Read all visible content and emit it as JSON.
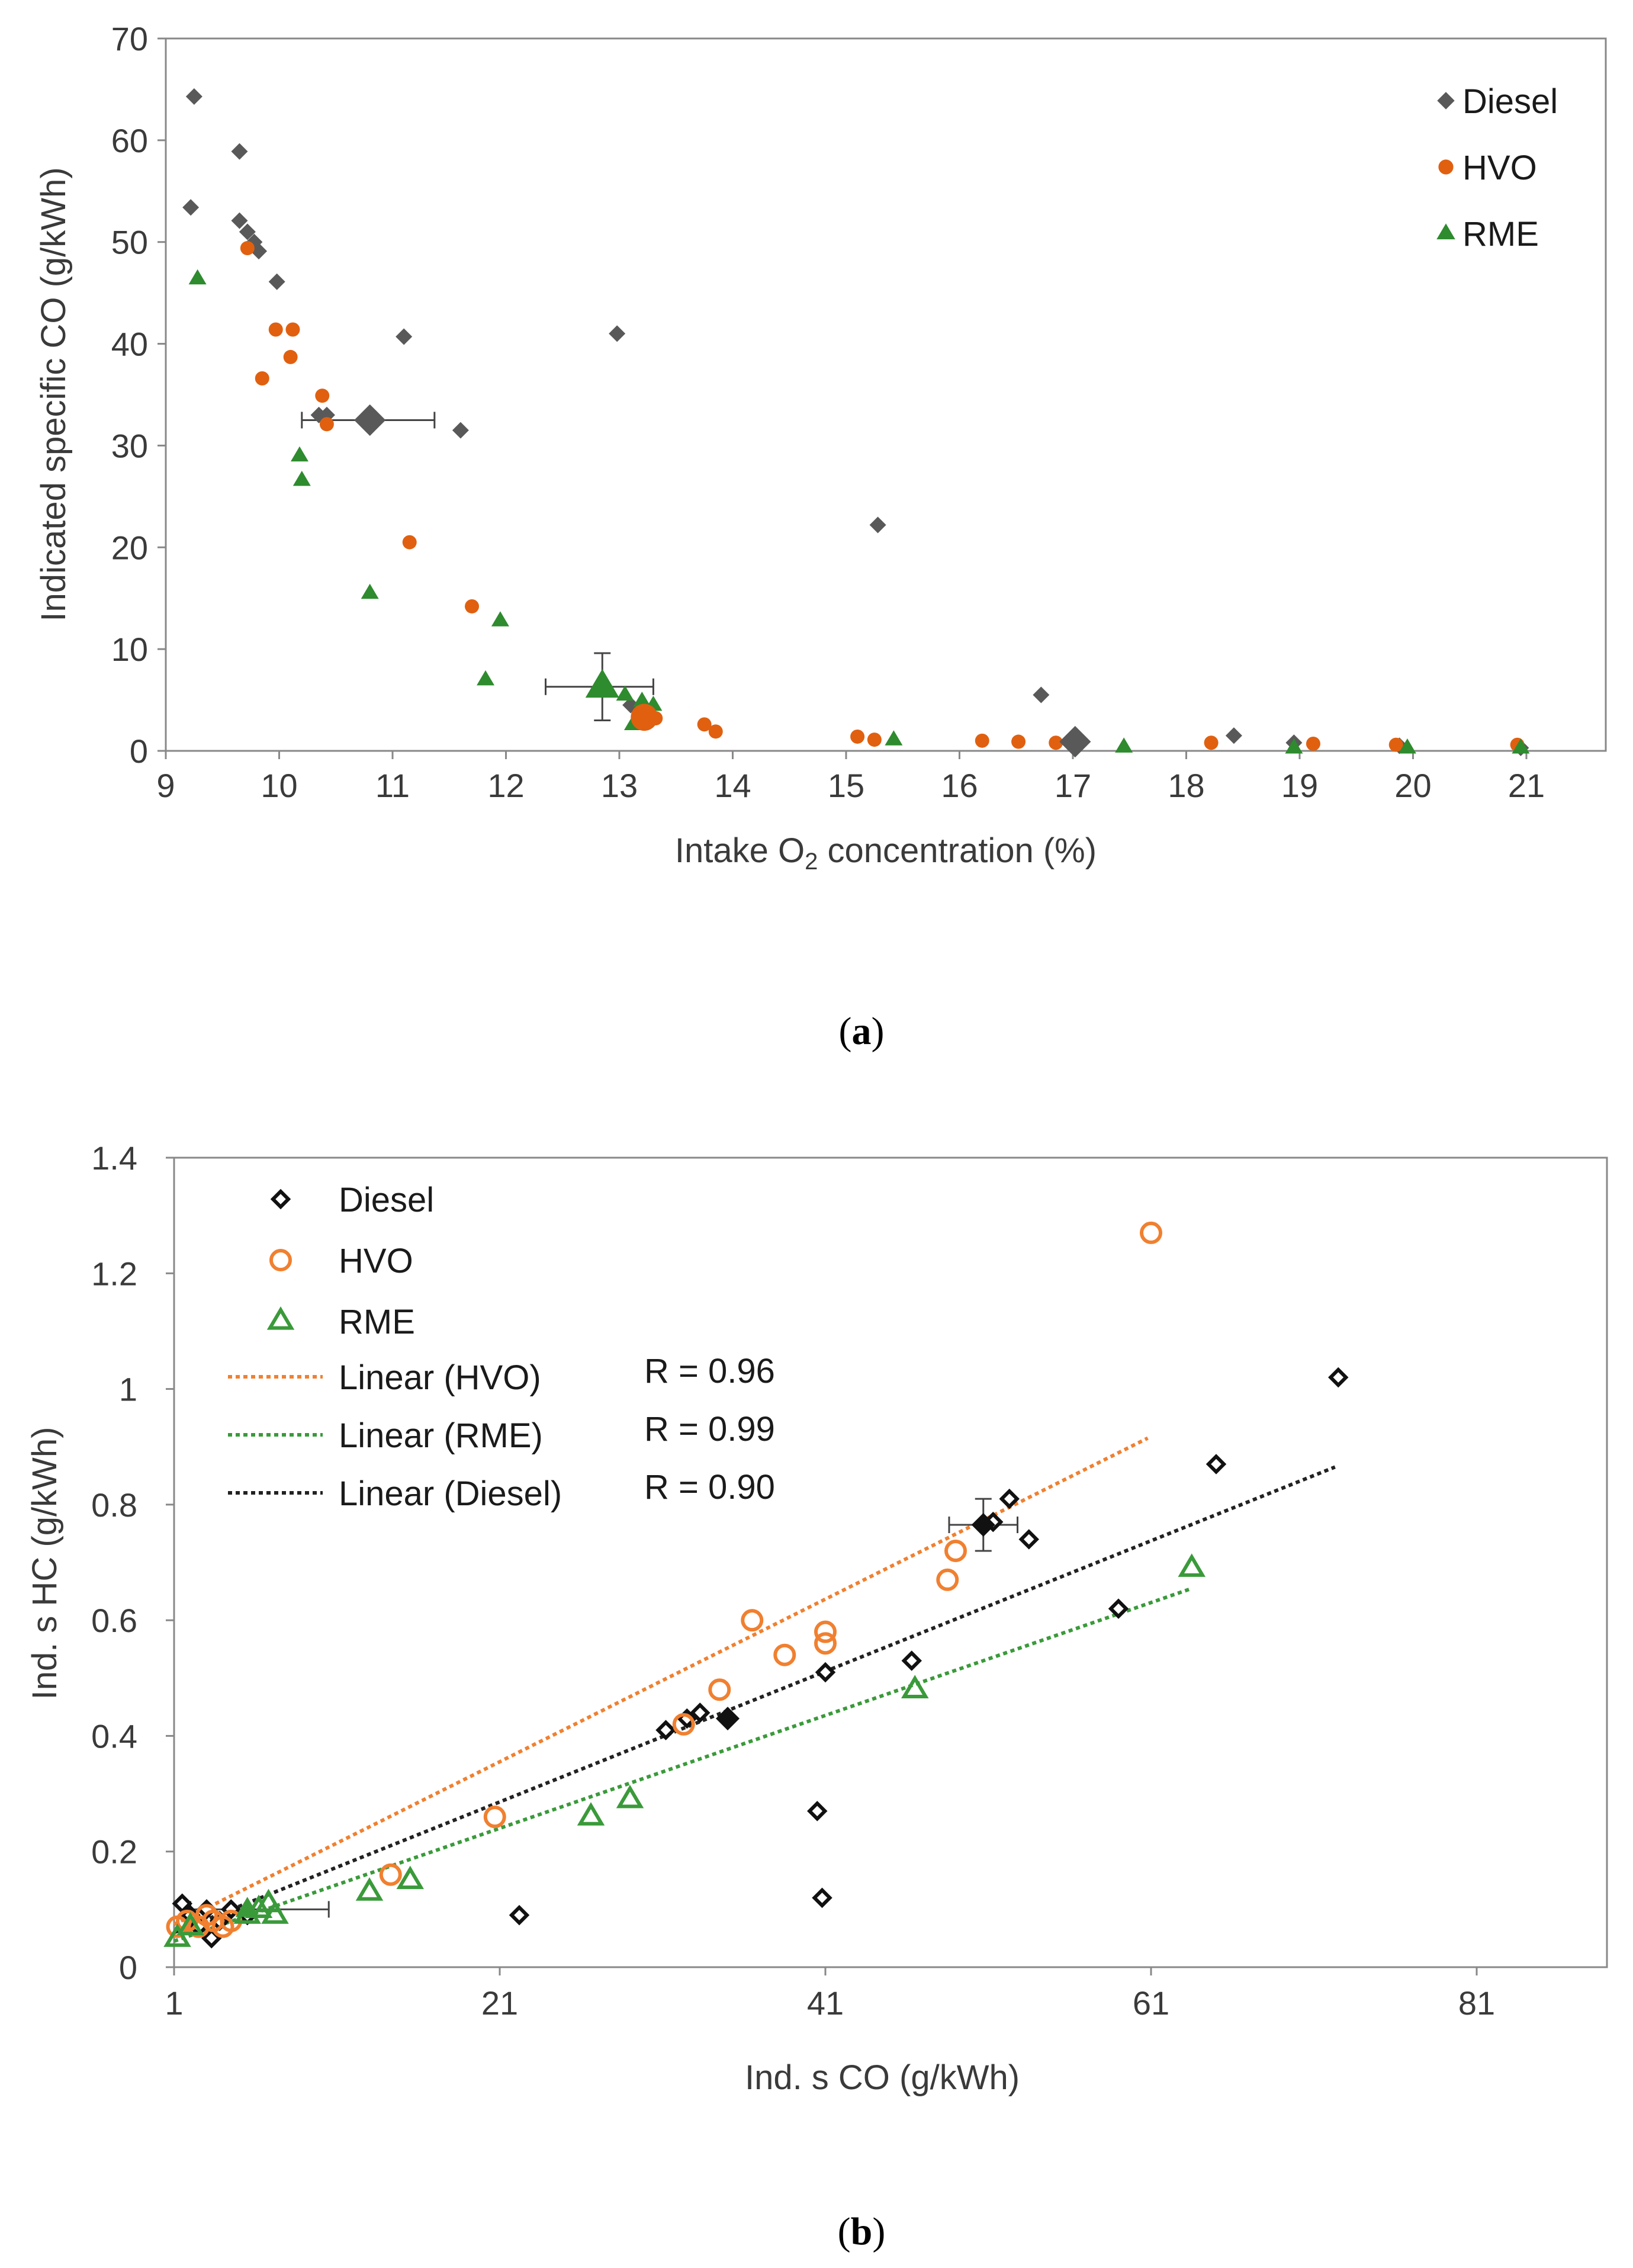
{
  "chart_data": [
    {
      "type": "scatter",
      "caption": "a",
      "xlabel": "Intake O₂ concentration (%)",
      "ylabel": "Indicated specific CO (g/kWh)",
      "xlim": [
        9,
        21.7
      ],
      "ylim": [
        0,
        70
      ],
      "xticks": [
        "9",
        "10",
        "11",
        "12",
        "13",
        "14",
        "15",
        "16",
        "17",
        "18",
        "19",
        "20",
        "21"
      ],
      "yticks": [
        "0",
        "10",
        "20",
        "30",
        "40",
        "50",
        "60",
        "70"
      ],
      "legend_position": "top-right",
      "series": [
        {
          "name": "Diesel",
          "marker": "diamond",
          "color": "#595959",
          "points": [
            [
              9.25,
              64.3
            ],
            [
              9.22,
              53.4
            ],
            [
              9.65,
              58.9
            ],
            [
              9.65,
              52.1
            ],
            [
              9.72,
              51.0
            ],
            [
              9.78,
              50.0
            ],
            [
              9.82,
              49.1
            ],
            [
              9.98,
              46.1
            ],
            [
              10.35,
              33.0
            ],
            [
              10.42,
              33.0
            ],
            [
              11.1,
              40.7
            ],
            [
              11.6,
              31.5
            ],
            [
              12.98,
              41.0
            ],
            [
              13.1,
              4.5
            ],
            [
              15.28,
              22.2
            ],
            [
              16.72,
              5.5
            ],
            [
              18.42,
              1.5
            ],
            [
              18.95,
              0.8
            ],
            [
              19.88,
              0.5
            ],
            [
              20.95,
              0.3
            ]
          ]
        },
        {
          "name": "HVO",
          "marker": "circle",
          "color": "#E06010",
          "points": [
            [
              9.72,
              49.4
            ],
            [
              9.85,
              36.6
            ],
            [
              9.97,
              41.4
            ],
            [
              10.12,
              41.4
            ],
            [
              10.1,
              38.7
            ],
            [
              10.38,
              34.9
            ],
            [
              10.42,
              32.1
            ],
            [
              11.15,
              20.5
            ],
            [
              11.7,
              14.2
            ],
            [
              13.22,
              3.0
            ],
            [
              13.32,
              3.2
            ],
            [
              13.75,
              2.6
            ],
            [
              13.85,
              1.9
            ],
            [
              15.1,
              1.4
            ],
            [
              15.25,
              1.1
            ],
            [
              16.2,
              1.0
            ],
            [
              16.52,
              0.9
            ],
            [
              16.85,
              0.8
            ],
            [
              17.05,
              0.8
            ],
            [
              18.22,
              0.8
            ],
            [
              19.12,
              0.7
            ],
            [
              19.85,
              0.6
            ],
            [
              20.92,
              0.6
            ]
          ]
        },
        {
          "name": "RME",
          "marker": "triangle",
          "color": "#2E8B2E",
          "points": [
            [
              9.28,
              46.4
            ],
            [
              10.18,
              29.0
            ],
            [
              10.2,
              26.6
            ],
            [
              10.8,
              15.5
            ],
            [
              11.82,
              7.0
            ],
            [
              11.95,
              12.8
            ],
            [
              13.05,
              5.5
            ],
            [
              13.12,
              2.6
            ],
            [
              13.2,
              4.9
            ],
            [
              13.3,
              4.5
            ],
            [
              15.42,
              1.1
            ],
            [
              17.45,
              0.4
            ],
            [
              18.95,
              0.3
            ],
            [
              19.95,
              0.3
            ],
            [
              20.95,
              0.3
            ]
          ]
        }
      ],
      "means": [
        {
          "series": "Diesel",
          "x": 10.8,
          "y": 32.5,
          "xerr": [
            10.2,
            11.37
          ]
        },
        {
          "series": "RME",
          "x": 12.85,
          "y": 6.3,
          "xerr": [
            12.35,
            13.3
          ],
          "yerr": [
            3.0,
            9.6
          ]
        },
        {
          "series": "HVO",
          "x": 13.22,
          "y": 3.3
        },
        {
          "series": "Diesel",
          "x": 17.02,
          "y": 0.9
        }
      ]
    },
    {
      "type": "scatter",
      "caption": "b",
      "xlabel": "Ind. s CO (g/kWh)",
      "ylabel": "Ind. s HC (g/kWh)",
      "xlim": [
        1,
        89
      ],
      "ylim": [
        0,
        1.4
      ],
      "xticks": [
        "1",
        "21",
        "41",
        "61",
        "81"
      ],
      "yticks": [
        "0",
        "0.2",
        "0.4",
        "0.6",
        "0.8",
        "1",
        "1.2",
        "1.4"
      ],
      "legend_position": "top-left",
      "series": [
        {
          "name": "Diesel",
          "marker": "open-diamond",
          "color": "#111111",
          "points": [
            [
              1.5,
              0.11
            ],
            [
              2,
              0.09
            ],
            [
              2.5,
              0.07
            ],
            [
              3.0,
              0.1
            ],
            [
              3.3,
              0.05
            ],
            [
              3.8,
              0.08
            ],
            [
              4.5,
              0.1
            ],
            [
              5.5,
              0.09
            ],
            [
              31.2,
              0.41
            ],
            [
              32.5,
              0.43
            ],
            [
              33.3,
              0.44
            ],
            [
              41.0,
              0.51
            ],
            [
              40.5,
              0.27
            ],
            [
              40.8,
              0.12
            ],
            [
              46.3,
              0.53
            ],
            [
              51.3,
              0.77
            ],
            [
              52.3,
              0.81
            ],
            [
              53.5,
              0.74
            ],
            [
              59.0,
              0.62
            ],
            [
              65.0,
              0.87
            ],
            [
              72.5,
              1.02
            ],
            [
              22.2,
              0.09
            ]
          ]
        },
        {
          "name": "HVO",
          "marker": "open-circle",
          "color": "#F08030",
          "points": [
            [
              1.2,
              0.07
            ],
            [
              1.8,
              0.08
            ],
            [
              2.5,
              0.07
            ],
            [
              3,
              0.09
            ],
            [
              3.4,
              0.08
            ],
            [
              4.0,
              0.07
            ],
            [
              4.5,
              0.08
            ],
            [
              14.3,
              0.16
            ],
            [
              20.7,
              0.26
            ],
            [
              32.3,
              0.42
            ],
            [
              34.5,
              0.48
            ],
            [
              36.5,
              0.6
            ],
            [
              38.5,
              0.54
            ],
            [
              41.0,
              0.58
            ],
            [
              41.0,
              0.56
            ],
            [
              48.5,
              0.67
            ],
            [
              49.0,
              0.72
            ],
            [
              61.0,
              1.27
            ]
          ]
        },
        {
          "name": "RME",
          "marker": "open-triangle",
          "color": "#3A9A3A",
          "points": [
            [
              1.2,
              0.05
            ],
            [
              2.0,
              0.07
            ],
            [
              5.5,
              0.09
            ],
            [
              6.2,
              0.1
            ],
            [
              6.8,
              0.11
            ],
            [
              7.2,
              0.09
            ],
            [
              13.0,
              0.13
            ],
            [
              15.5,
              0.15
            ],
            [
              26.6,
              0.26
            ],
            [
              29.0,
              0.29
            ],
            [
              46.5,
              0.48
            ],
            [
              63.5,
              0.69
            ]
          ]
        }
      ],
      "trendlines": [
        {
          "name": "Linear (HVO)",
          "r_label": "R = 0.96",
          "color": "#F08030",
          "x": [
            1,
            60.8
          ],
          "y": [
            0.074,
            0.915
          ]
        },
        {
          "name": "Linear (RME)",
          "r_label": "R = 0.99",
          "color": "#3A9A3A",
          "x": [
            1,
            63.5
          ],
          "y": [
            0.045,
            0.655
          ]
        },
        {
          "name": "Linear (Diesel)",
          "r_label": "R = 0.90",
          "color": "#222222",
          "x": [
            1,
            72.3
          ],
          "y": [
            0.06,
            0.865
          ]
        }
      ],
      "means": [
        {
          "series": "Diesel",
          "x": 50.7,
          "y": 0.765,
          "xerr": [
            48.6,
            52.8
          ],
          "yerr": [
            0.72,
            0.81
          ]
        },
        {
          "series": "Diesel",
          "x": 35.0,
          "y": 0.43
        },
        {
          "series": "RME",
          "x": 5.5,
          "y": 0.1,
          "xerr": [
            2.0,
            10.5
          ]
        }
      ]
    }
  ]
}
